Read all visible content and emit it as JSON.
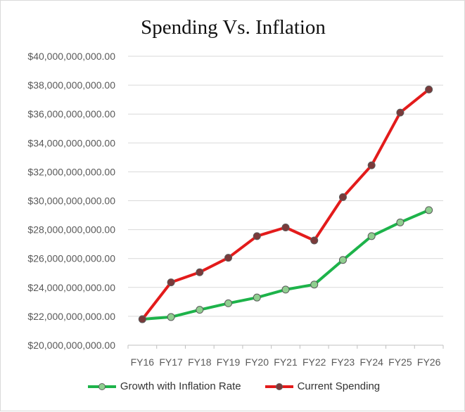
{
  "chart_data": {
    "type": "line",
    "title": "Spending Vs. Inflation",
    "xlabel": "",
    "ylabel": "",
    "categories": [
      "FY16",
      "FY17",
      "FY18",
      "FY19",
      "FY20",
      "FY21",
      "FY22",
      "FY23",
      "FY24",
      "FY25",
      "FY26"
    ],
    "ylim": [
      20000000000,
      40000000000
    ],
    "y_ticks": [
      "$20,000,000,000.00",
      "$22,000,000,000.00",
      "$24,000,000,000.00",
      "$26,000,000,000.00",
      "$28,000,000,000.00",
      "$30,000,000,000.00",
      "$32,000,000,000.00",
      "$34,000,000,000.00",
      "$36,000,000,000.00",
      "$38,000,000,000.00",
      "$40,000,000,000.00"
    ],
    "grid": true,
    "legend_position": "bottom",
    "series": [
      {
        "name": "Growth with Inflation Rate",
        "color": "#1db34a",
        "marker_color": "#8fcf8f",
        "values": [
          21800000000,
          21950000000,
          22450000000,
          22900000000,
          23300000000,
          23850000000,
          24200000000,
          25900000000,
          27550000000,
          28500000000,
          29350000000
        ]
      },
      {
        "name": "Current Spending",
        "color": "#e31b1b",
        "marker_color": "#7a3a3a",
        "values": [
          21800000000,
          24350000000,
          25050000000,
          26050000000,
          27550000000,
          28150000000,
          27250000000,
          30250000000,
          32450000000,
          36100000000,
          37700000000
        ]
      }
    ]
  }
}
